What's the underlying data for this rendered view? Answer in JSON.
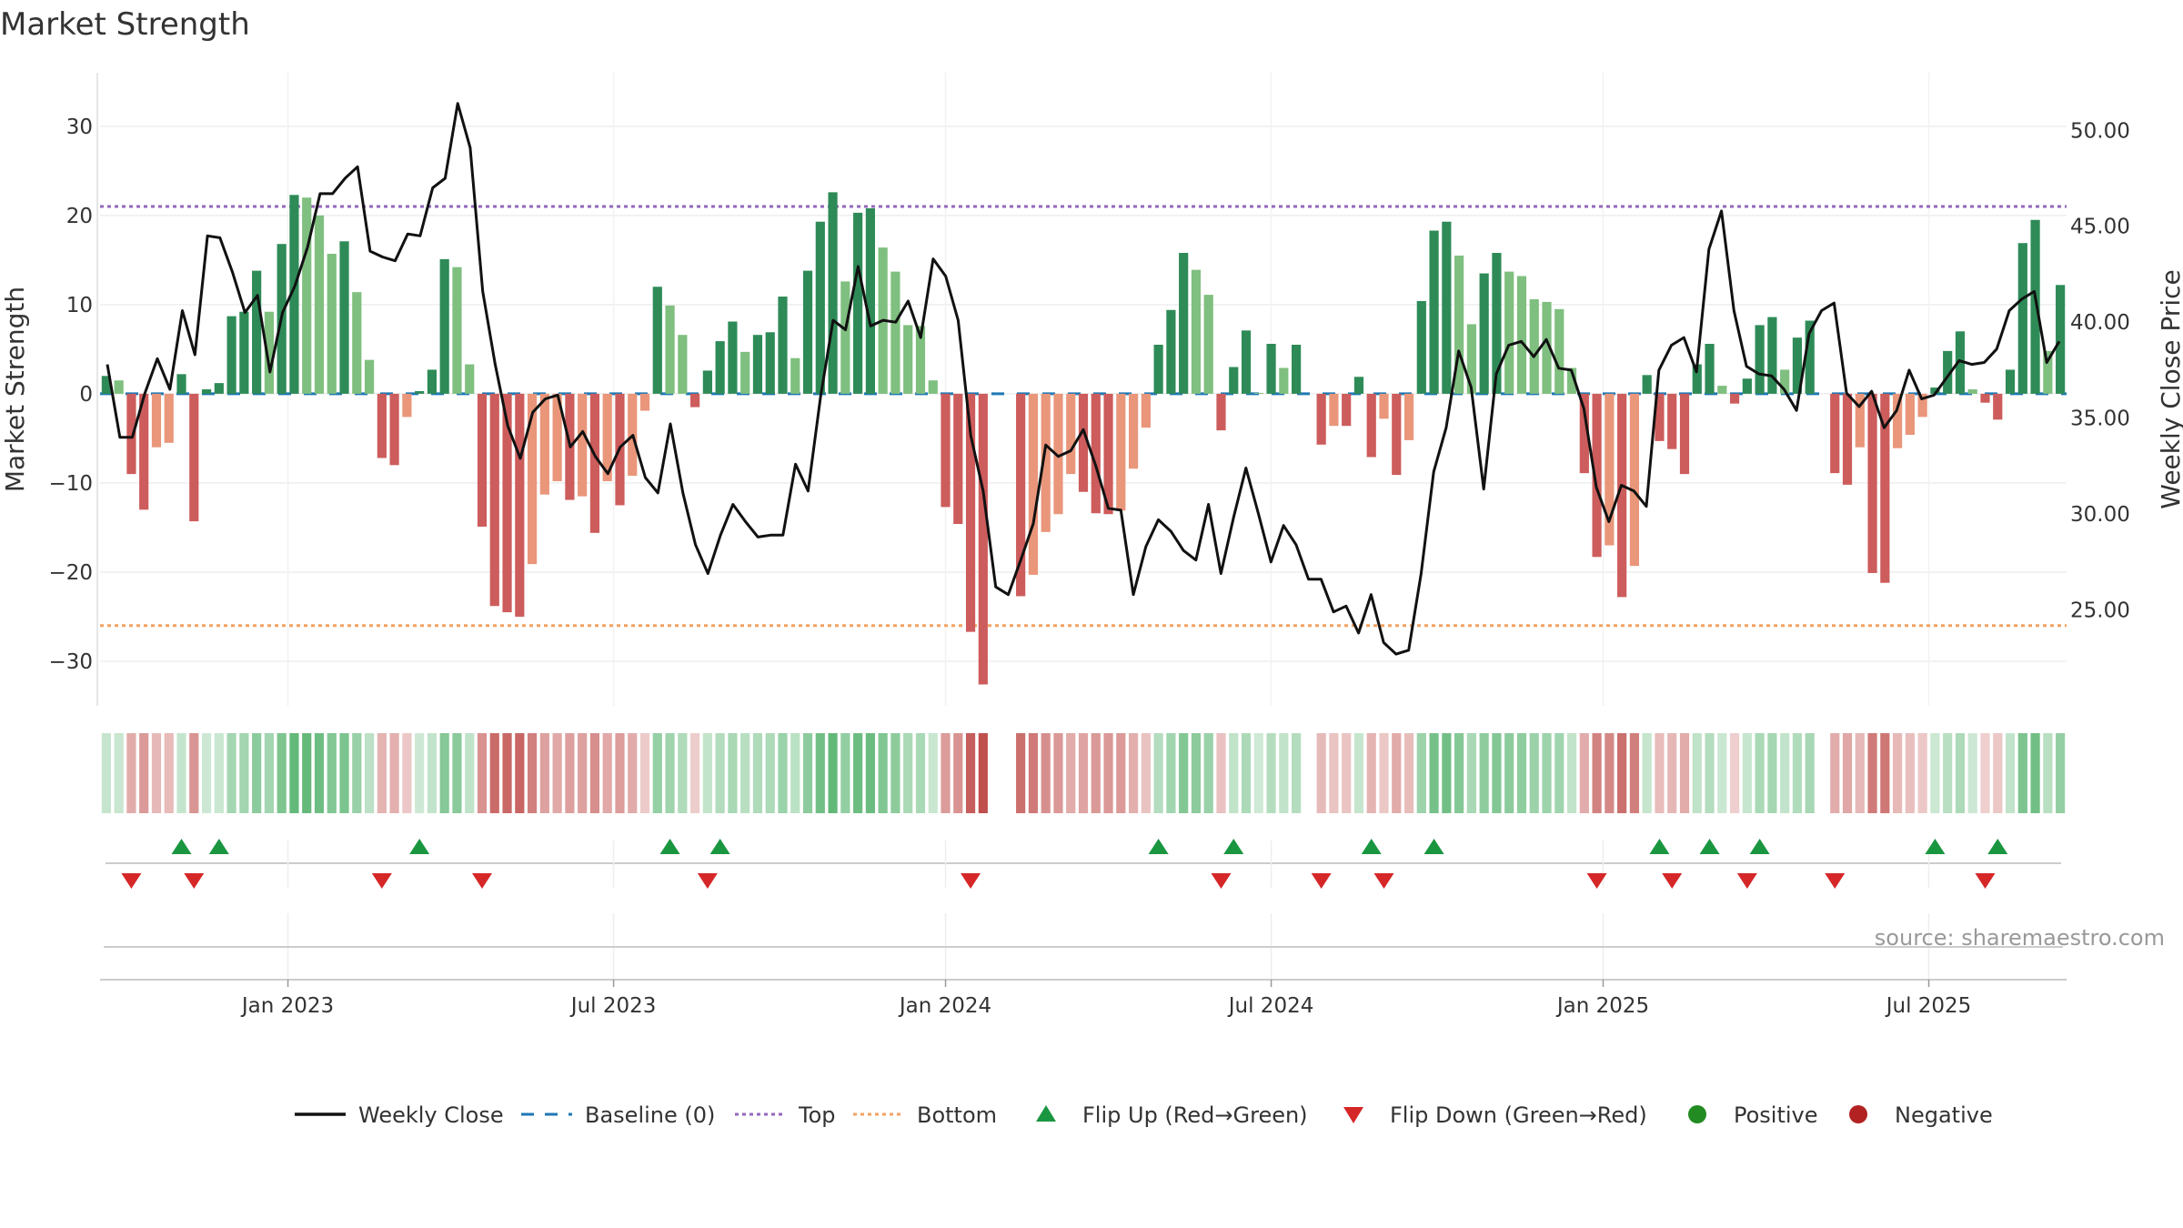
{
  "chart_data": {
    "type": "bar+line",
    "title": "Market Strength",
    "ylabel_left": "Market Strength",
    "ylabel_right": "Weekly Close Price",
    "source": "source: sharemaestro.com",
    "ylim_left": [
      -35,
      36
    ],
    "ylim_right": [
      20.0,
      53.0
    ],
    "yticks_left": [
      "30",
      "20",
      "10",
      "0",
      "−10",
      "−20",
      "−30"
    ],
    "yticks_left_values": [
      30,
      20,
      10,
      0,
      -10,
      -20,
      -30
    ],
    "yticks_right": [
      "50.00",
      "45.00",
      "40.00",
      "35.00",
      "30.00",
      "25.00"
    ],
    "yticks_right_values": [
      50,
      45,
      40,
      35,
      30,
      25
    ],
    "x_weeks": 157,
    "xticks": [
      "Jan 2023",
      "Jul 2023",
      "Jan 2024",
      "Jul 2024",
      "Jan 2025",
      "Jul 2025"
    ],
    "xtick_week_index": [
      15,
      41,
      67.5,
      93.5,
      120,
      146
    ],
    "top_line": 21,
    "bottom_line": -26,
    "strength": [
      2.0,
      1.5,
      -9.0,
      -13.0,
      -6.0,
      -5.5,
      2.2,
      -14.3,
      0.5,
      1.2,
      8.7,
      9.2,
      13.8,
      9.2,
      16.8,
      22.3,
      22.0,
      20.0,
      15.7,
      17.1,
      11.4,
      3.8,
      -7.2,
      -8.0,
      -2.6,
      0.3,
      2.7,
      15.1,
      14.2,
      3.3,
      -14.9,
      -23.8,
      -24.5,
      -25.0,
      -19.1,
      -11.3,
      -9.8,
      -11.9,
      -11.5,
      -15.6,
      -9.8,
      -12.5,
      -9.2,
      -1.9,
      12.0,
      9.9,
      6.6,
      -1.5,
      2.6,
      5.9,
      8.1,
      4.7,
      6.6,
      6.9,
      10.9,
      4.0,
      13.8,
      19.3,
      22.6,
      12.6,
      20.3,
      20.8,
      16.4,
      13.7,
      7.7,
      7.6,
      1.5,
      -12.7,
      -14.6,
      -26.7,
      -32.6,
      0,
      0,
      -22.7,
      -20.3,
      -15.5,
      -13.5,
      -9.0,
      -11.0,
      -13.4,
      -13.5,
      -13.1,
      -8.4,
      -3.8,
      5.5,
      9.4,
      15.8,
      13.9,
      11.1,
      -4.1,
      3.0,
      7.1,
      0.1,
      5.6,
      2.9,
      5.5,
      0,
      -5.7,
      -3.6,
      -3.6,
      1.9,
      -7.1,
      -2.8,
      -9.1,
      -5.2,
      10.4,
      18.3,
      19.3,
      15.5,
      7.8,
      13.5,
      15.8,
      13.7,
      13.2,
      10.6,
      10.3,
      9.5,
      2.9,
      -8.9,
      -18.3,
      -17.0,
      -22.8,
      -19.3,
      2.1,
      -5.3,
      -6.2,
      -9.0,
      3.3,
      5.6,
      0.9,
      -1.1,
      1.7,
      7.7,
      8.6,
      2.7,
      6.3,
      8.2,
      0,
      -8.9,
      -10.2,
      -6.0,
      -20.1,
      -21.2,
      -6.1,
      -4.6,
      -2.6,
      0.7,
      4.8,
      7.0,
      0.5,
      -1.0,
      -2.9,
      2.7,
      16.9,
      19.5,
      4.8,
      12.2
    ],
    "close": [
      37.8,
      34.0,
      34.0,
      36.3,
      38.1,
      36.5,
      40.6,
      38.3,
      44.5,
      44.4,
      42.6,
      40.5,
      41.4,
      37.4,
      40.5,
      41.9,
      43.9,
      46.7,
      46.7,
      47.5,
      48.1,
      43.7,
      43.4,
      43.2,
      44.6,
      44.5,
      47.0,
      47.5,
      51.4,
      49.1,
      41.6,
      37.8,
      34.6,
      32.9,
      35.3,
      36.0,
      36.2,
      33.5,
      34.3,
      33.0,
      32.1,
      33.5,
      34.1,
      31.9,
      31.1,
      34.7,
      31.1,
      28.4,
      26.9,
      28.9,
      30.5,
      29.6,
      28.8,
      28.9,
      28.9,
      32.6,
      31.2,
      36.1,
      40.1,
      39.6,
      42.9,
      39.8,
      40.1,
      40.0,
      41.1,
      39.2,
      43.3,
      42.4,
      40.1,
      34.1,
      31.2,
      26.2,
      25.8,
      27.6,
      29.5,
      33.6,
      33.0,
      33.3,
      34.4,
      32.5,
      30.3,
      30.2,
      25.8,
      28.3,
      29.7,
      29.1,
      28.1,
      27.6,
      30.5,
      26.9,
      29.8,
      32.4,
      30.0,
      27.5,
      29.4,
      28.4,
      26.6,
      26.6,
      24.9,
      25.2,
      23.8,
      25.8,
      23.3,
      22.7,
      22.9,
      26.9,
      32.2,
      34.5,
      38.5,
      36.6,
      31.3,
      37.3,
      38.8,
      39.0,
      38.2,
      39.1,
      37.6,
      37.5,
      35.5,
      31.4,
      29.6,
      31.5,
      31.2,
      30.4,
      37.5,
      38.8,
      39.2,
      37.4,
      43.8,
      45.8,
      40.6,
      37.7,
      37.3,
      37.2,
      36.5,
      35.4,
      39.4,
      40.6,
      41.0,
      36.3,
      35.6,
      36.4,
      34.5,
      35.4,
      37.5,
      36.0,
      36.2,
      37.1,
      38.0,
      37.8,
      37.9,
      38.6,
      40.6,
      41.2,
      41.6,
      37.9,
      39.0
    ],
    "strip_note": "Second row: per-week strength heat strip (colour intensity follows strength)",
    "flips_up_week_index": [
      6,
      9,
      25,
      45,
      49,
      84,
      90,
      101,
      106,
      124,
      128,
      132,
      146,
      151
    ],
    "flips_down_week_index": [
      2,
      7,
      22,
      30,
      48,
      69,
      89,
      97,
      102,
      119,
      125,
      131,
      138,
      150
    ],
    "legend": [
      "Weekly Close",
      "Baseline (0)",
      "Top",
      "Bottom",
      "Flip Up (Red→Green)",
      "Flip Down (Green→Red)",
      "Positive",
      "Negative"
    ],
    "legend_placement": "bottom-center",
    "colors": {
      "pos_strong": "#2e8b57",
      "pos_weak": "#7fbf7f",
      "neg_strong": "#cd5c5c",
      "neg_weak": "#e9967a",
      "close_line": "#111111",
      "baseline": "#1f77b4",
      "top": "#9467bd",
      "bottom": "#f4a261",
      "flip_up": "#1a9641",
      "flip_down": "#d62728",
      "positive_dot": "#228b22",
      "negative_dot": "#b22222"
    }
  }
}
